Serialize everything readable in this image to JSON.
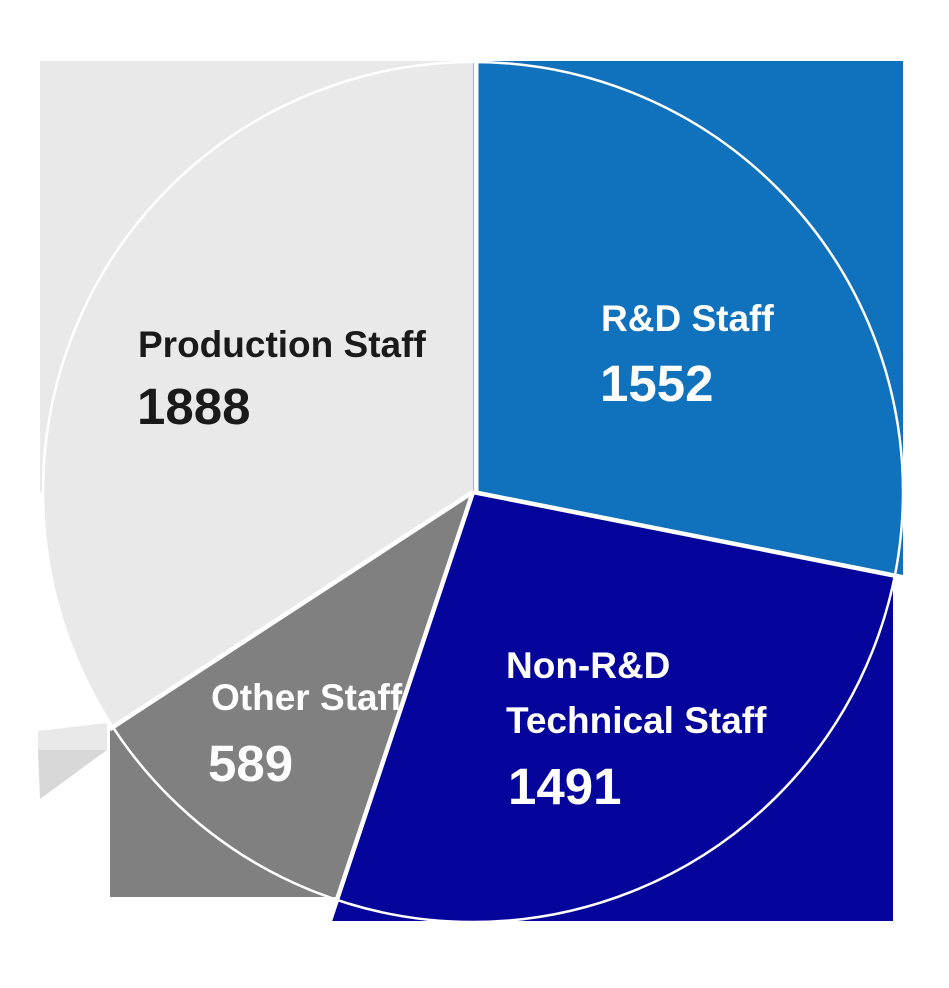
{
  "chart_data": {
    "type": "pie",
    "variant": "squared-slices-with-circle-outline",
    "title": "",
    "direction": "clockwise",
    "start_angle_deg": 0,
    "legend_position": "labels-inside-slices",
    "background_color": "#FFFFFF",
    "separator_color": "#FFFFFF",
    "outline_color": "#FFFFFF",
    "shadow_color": "#D8D8D8",
    "categories": [
      "R&D Staff",
      "Non-R&D Technical Staff",
      "Other Staff",
      "Production Staff"
    ],
    "values": [
      1552,
      1491,
      589,
      1888
    ],
    "slices": [
      {
        "label": "R&D Staff",
        "value": 1552,
        "color": "#1071BC",
        "text_color": "#FFFFFF"
      },
      {
        "label": "Non-R&D Technical Staff",
        "label_lines": [
          "Non-R&D",
          "Technical Staff"
        ],
        "value": 1491,
        "color": "#05059B",
        "text_color": "#FFFFFF"
      },
      {
        "label": "Other Staff",
        "value": 589,
        "color": "#808080",
        "text_color": "#FFFFFF"
      },
      {
        "label": "Production Staff",
        "value": 1888,
        "color": "#E9E9E9",
        "text_color": "#1A1A1A"
      }
    ]
  }
}
